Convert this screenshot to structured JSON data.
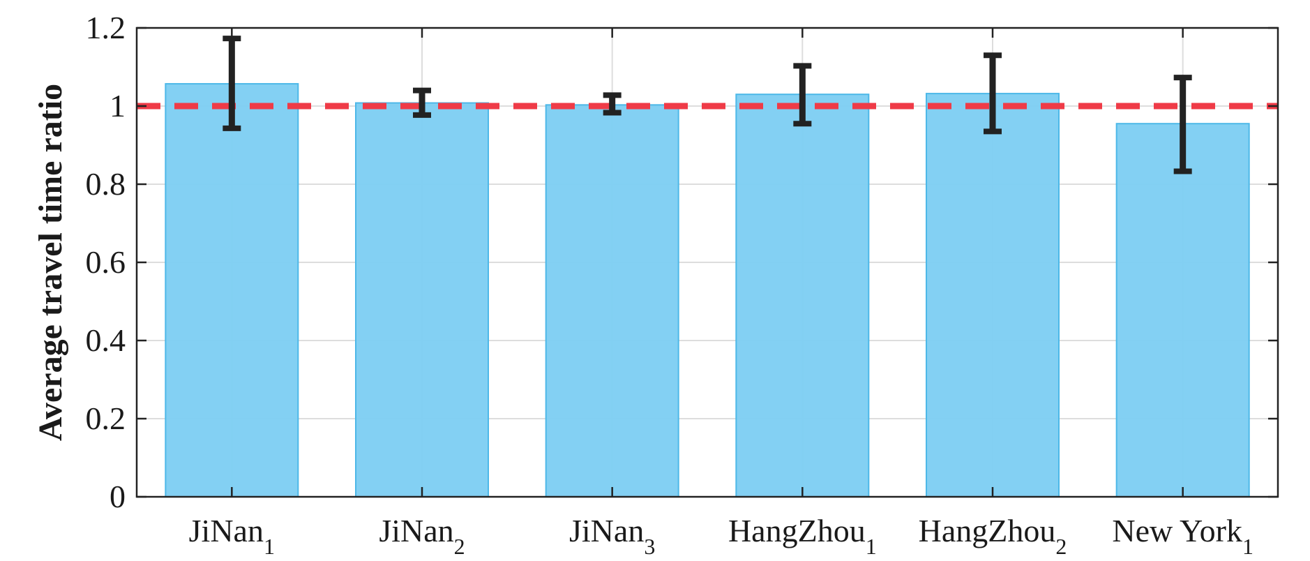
{
  "chart_data": {
    "type": "bar",
    "ylabel": "Average travel time ratio",
    "xlabel": "",
    "ylim": [
      0,
      1.2
    ],
    "yticks": [
      0,
      0.2,
      0.4,
      0.6,
      0.8,
      1,
      1.2
    ],
    "ytick_labels": [
      "0",
      "0.2",
      "0.4",
      "0.6",
      "0.8",
      "1",
      "1.2"
    ],
    "categories": [
      {
        "main": "JiNan",
        "sub": "1"
      },
      {
        "main": "JiNan",
        "sub": "2"
      },
      {
        "main": "JiNan",
        "sub": "3"
      },
      {
        "main": "HangZhou",
        "sub": "1"
      },
      {
        "main": "HangZhou",
        "sub": "2"
      },
      {
        "main": "New York",
        "sub": "1"
      }
    ],
    "values": [
      1.057,
      1.008,
      1.003,
      1.03,
      1.032,
      0.955
    ],
    "error_low": [
      0.943,
      0.977,
      0.983,
      0.955,
      0.935,
      0.833
    ],
    "error_high": [
      1.173,
      1.04,
      1.028,
      1.103,
      1.13,
      1.073
    ],
    "reference_line": 1,
    "grid": true,
    "colors": {
      "bar_fill": "#7ccdf2",
      "bar_edge": "#4db8e8",
      "error_bar": "#222222",
      "reference_line": "#ef3b47",
      "grid": "#dddddd",
      "axis": "#222222"
    }
  }
}
